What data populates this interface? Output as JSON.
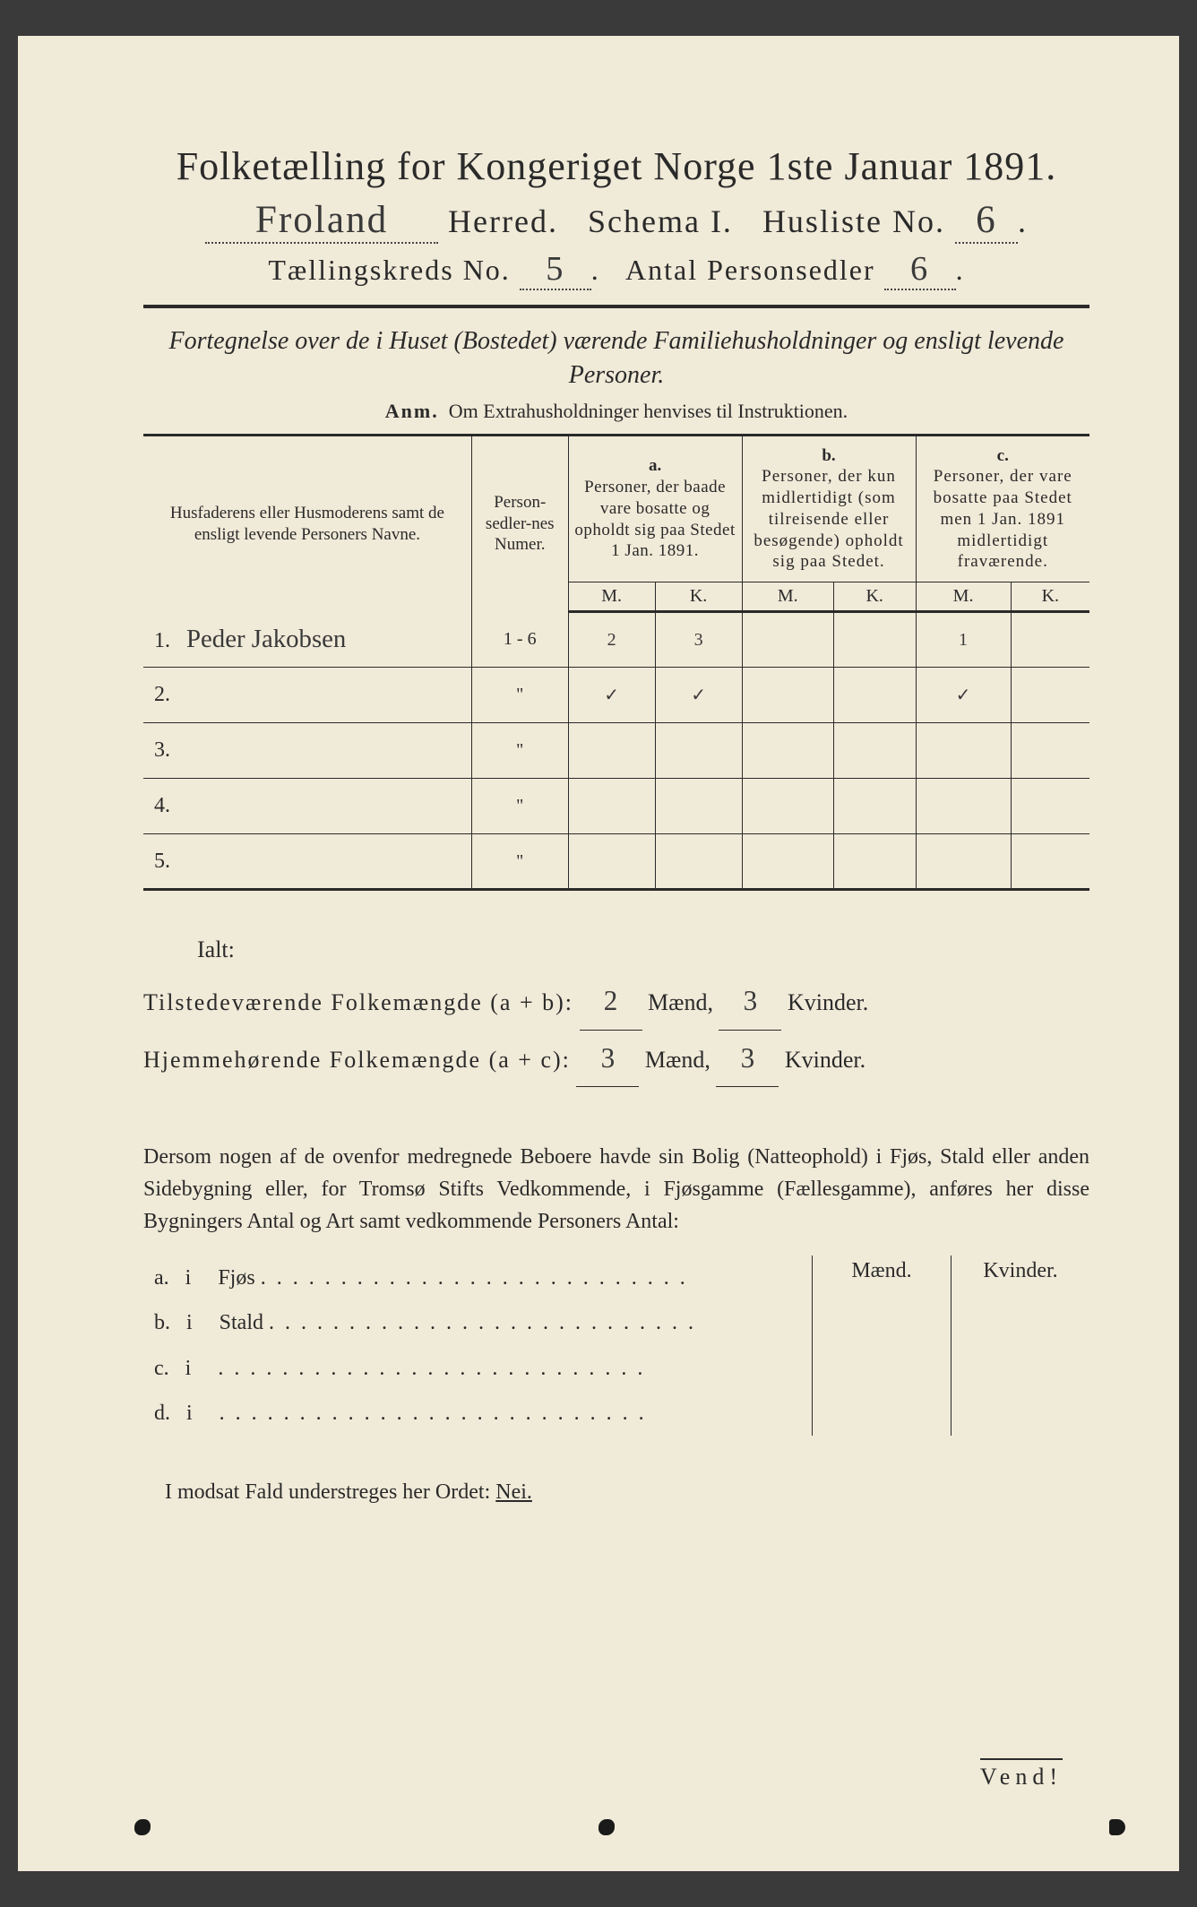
{
  "header": {
    "title": "Folketælling for Kongeriget Norge 1ste Januar 1891.",
    "herred_value": "Froland",
    "herred_label": "Herred.",
    "schema_label": "Schema I.",
    "husliste_label": "Husliste No.",
    "husliste_value": "6",
    "kreds_label": "Tællingskreds No.",
    "kreds_value": "5",
    "personsedler_label": "Antal Personsedler",
    "personsedler_value": "6"
  },
  "subtitle": "Fortegnelse over de i Huset (Bostedet) værende Familiehusholdninger og ensligt levende Personer.",
  "anm_label": "Anm.",
  "anm_text": "Om Extrahusholdninger henvises til Instruktionen.",
  "table": {
    "col_name": "Husfaderens eller Husmoderens samt de ensligt levende Personers Navne.",
    "col_numer": "Person-sedler-nes Numer.",
    "col_a_letter": "a.",
    "col_a": "Personer, der baade vare bosatte og opholdt sig paa Stedet 1 Jan. 1891.",
    "col_b_letter": "b.",
    "col_b": "Personer, der kun midlertidigt (som tilreisende eller besøgende) opholdt sig paa Stedet.",
    "col_c_letter": "c.",
    "col_c": "Personer, der vare bosatte paa Stedet men 1 Jan. 1891 midlertidigt fraværende.",
    "m": "M.",
    "k": "K.",
    "rows": [
      {
        "num": "1.",
        "name": "Peder Jakobsen",
        "psn": "1 - 6",
        "am": "2",
        "ak": "3",
        "bm": "",
        "bk": "",
        "cm": "1",
        "ck": ""
      },
      {
        "num": "2.",
        "name": "",
        "psn": "\"",
        "am": "✓",
        "ak": "✓",
        "bm": "",
        "bk": "",
        "cm": "✓",
        "ck": ""
      },
      {
        "num": "3.",
        "name": "",
        "psn": "\"",
        "am": "",
        "ak": "",
        "bm": "",
        "bk": "",
        "cm": "",
        "ck": ""
      },
      {
        "num": "4.",
        "name": "",
        "psn": "\"",
        "am": "",
        "ak": "",
        "bm": "",
        "bk": "",
        "cm": "",
        "ck": ""
      },
      {
        "num": "5.",
        "name": "",
        "psn": "\"",
        "am": "",
        "ak": "",
        "bm": "",
        "bk": "",
        "cm": "",
        "ck": ""
      }
    ]
  },
  "totals": {
    "ialt": "Ialt:",
    "line1_label": "Tilstedeværende Folkemængde (a + b):",
    "line1_m": "2",
    "line1_k": "3",
    "line2_label": "Hjemmehørende Folkemængde (a + c):",
    "line2_m": "3",
    "line2_k": "3",
    "maend": "Mænd,",
    "kvinder": "Kvinder."
  },
  "paragraph": "Dersom nogen af de ovenfor medregnede Beboere havde sin Bolig (Natteophold) i Fjøs, Stald eller anden Sidebygning eller, for Tromsø Stifts Vedkommende, i Fjøsgamme (Fællesgamme), anføres her disse Bygningers Antal og Art samt vedkommende Personers Antal:",
  "buildings": {
    "maend": "Mænd.",
    "kvinder": "Kvinder.",
    "rows": [
      {
        "l": "a.",
        "i": "i",
        "t": "Fjøs"
      },
      {
        "l": "b.",
        "i": "i",
        "t": "Stald"
      },
      {
        "l": "c.",
        "i": "i",
        "t": ""
      },
      {
        "l": "d.",
        "i": "i",
        "t": ""
      }
    ]
  },
  "footer": {
    "text": "I modsat Fald understreges her Ordet:",
    "nei": "Nei.",
    "vend": "Vend!"
  },
  "colors": {
    "paper": "#f0ead8",
    "ink": "#2a2a2a",
    "bg": "#3a3a3a"
  }
}
